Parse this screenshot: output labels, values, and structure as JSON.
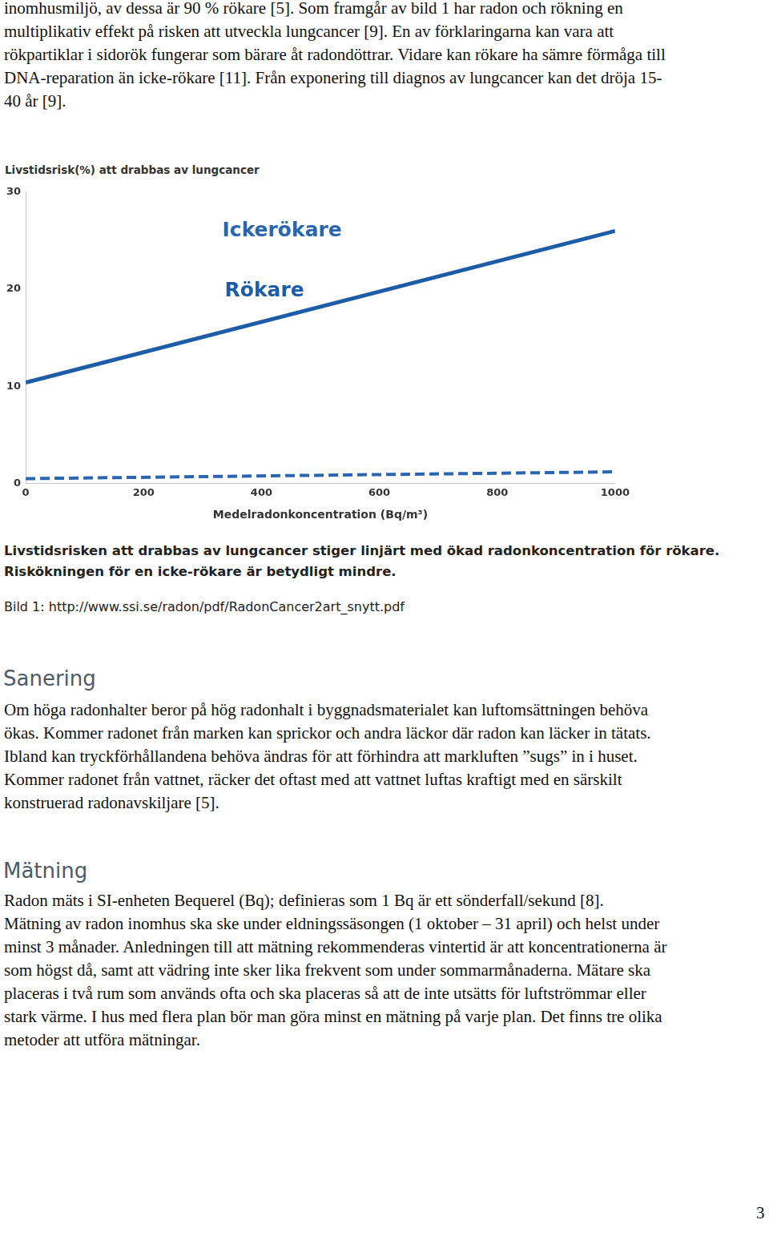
{
  "intro": "inomhusmiljö, av dessa är 90 % rökare [5]. Som framgår av bild 1 har radon och rökning en multiplikativ effekt på risken att utveckla lungcancer [9]. En av förklaringarna kan vara att rökpartiklar i sidorök fungerar som bärare åt radondöttrar. Vidare kan rökare ha sämre förmåga till DNA-reparation än icke-rökare [11]. Från exponering till diagnos av lungcancer kan det dröja 15-40 år [9].",
  "chart_data": {
    "type": "line",
    "y_label": "Livstidsrisk(%) att drabbas av lungcancer",
    "x_label": "Medelradonkoncentration (Bq/m³)",
    "x": [
      0,
      1000
    ],
    "series": [
      {
        "name": "Rökare",
        "color": "#1d5ca6",
        "line_style": "solid",
        "values": [
          10.4,
          26
        ]
      },
      {
        "name": "Ickerökare",
        "color": "#2a66b0",
        "line_style": "dashed",
        "values": [
          0.5,
          1.2
        ]
      }
    ],
    "xlim": [
      0,
      1000
    ],
    "xticks": [
      0,
      200,
      400,
      600,
      800,
      1000
    ],
    "ylim": [
      0,
      30
    ],
    "yticks": [
      0,
      10,
      20,
      30
    ],
    "grid": false
  },
  "caption": "Livstidsrisken att drabbas av lungcancer stiger linjärt med ökad radonkoncentration för rökare. Riskökningen för en icke-rökare är betydligt mindre.",
  "source": "Bild 1: http://www.ssi.se/radon/pdf/RadonCancer2art_snytt.pdf",
  "sections": [
    {
      "heading": "Sanering",
      "paragraphs": [
        "Om höga radonhalter beror på hög radonhalt i byggnadsmaterialet kan luftomsättningen behöva ökas. Kommer radonet från marken kan sprickor och andra läckor där radon kan läcker in tätats. Ibland kan tryckförhållandena behöva ändras för att förhindra att markluften ”sugs” in i huset. Kommer radonet från vattnet, räcker det oftast med att vattnet luftas kraftigt med en särskilt konstruerad radonavskiljare [5]."
      ]
    },
    {
      "heading": "Mätning",
      "paragraphs": [
        "Radon mäts i SI-enheten Bequerel (Bq); definieras som 1 Bq är ett sönderfall/sekund [8].",
        "Mätning av radon inomhus ska ske under eldningssäsongen (1 oktober – 31 april) och helst under minst 3 månader. Anledningen till att mätning rekommenderas vintertid är att koncentrationerna är som högst då, samt att vädring inte sker lika frekvent som under sommarmånaderna. Mätare ska placeras i två rum som används ofta och ska placeras så att de inte utsätts för luftströmmar eller stark värme. I hus med flera plan bör man göra minst en mätning på varje plan. Det finns tre olika metoder att utföra mätningar."
      ]
    }
  ],
  "page_number": "3"
}
